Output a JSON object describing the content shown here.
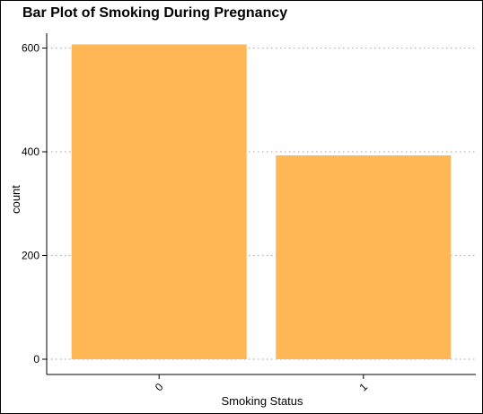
{
  "chart_data": {
    "type": "bar",
    "title": "Bar Plot of Smoking During Pregnancy",
    "xlabel": "Smoking Status",
    "ylabel": "count",
    "categories": [
      "0",
      "1"
    ],
    "values": [
      607,
      393
    ],
    "ylim": [
      0,
      640
    ],
    "yticks": [
      0,
      200,
      400,
      600
    ],
    "grid": "horizontal dotted",
    "bar_color": "#FFB755",
    "grid_color": "#B3B3B3"
  }
}
